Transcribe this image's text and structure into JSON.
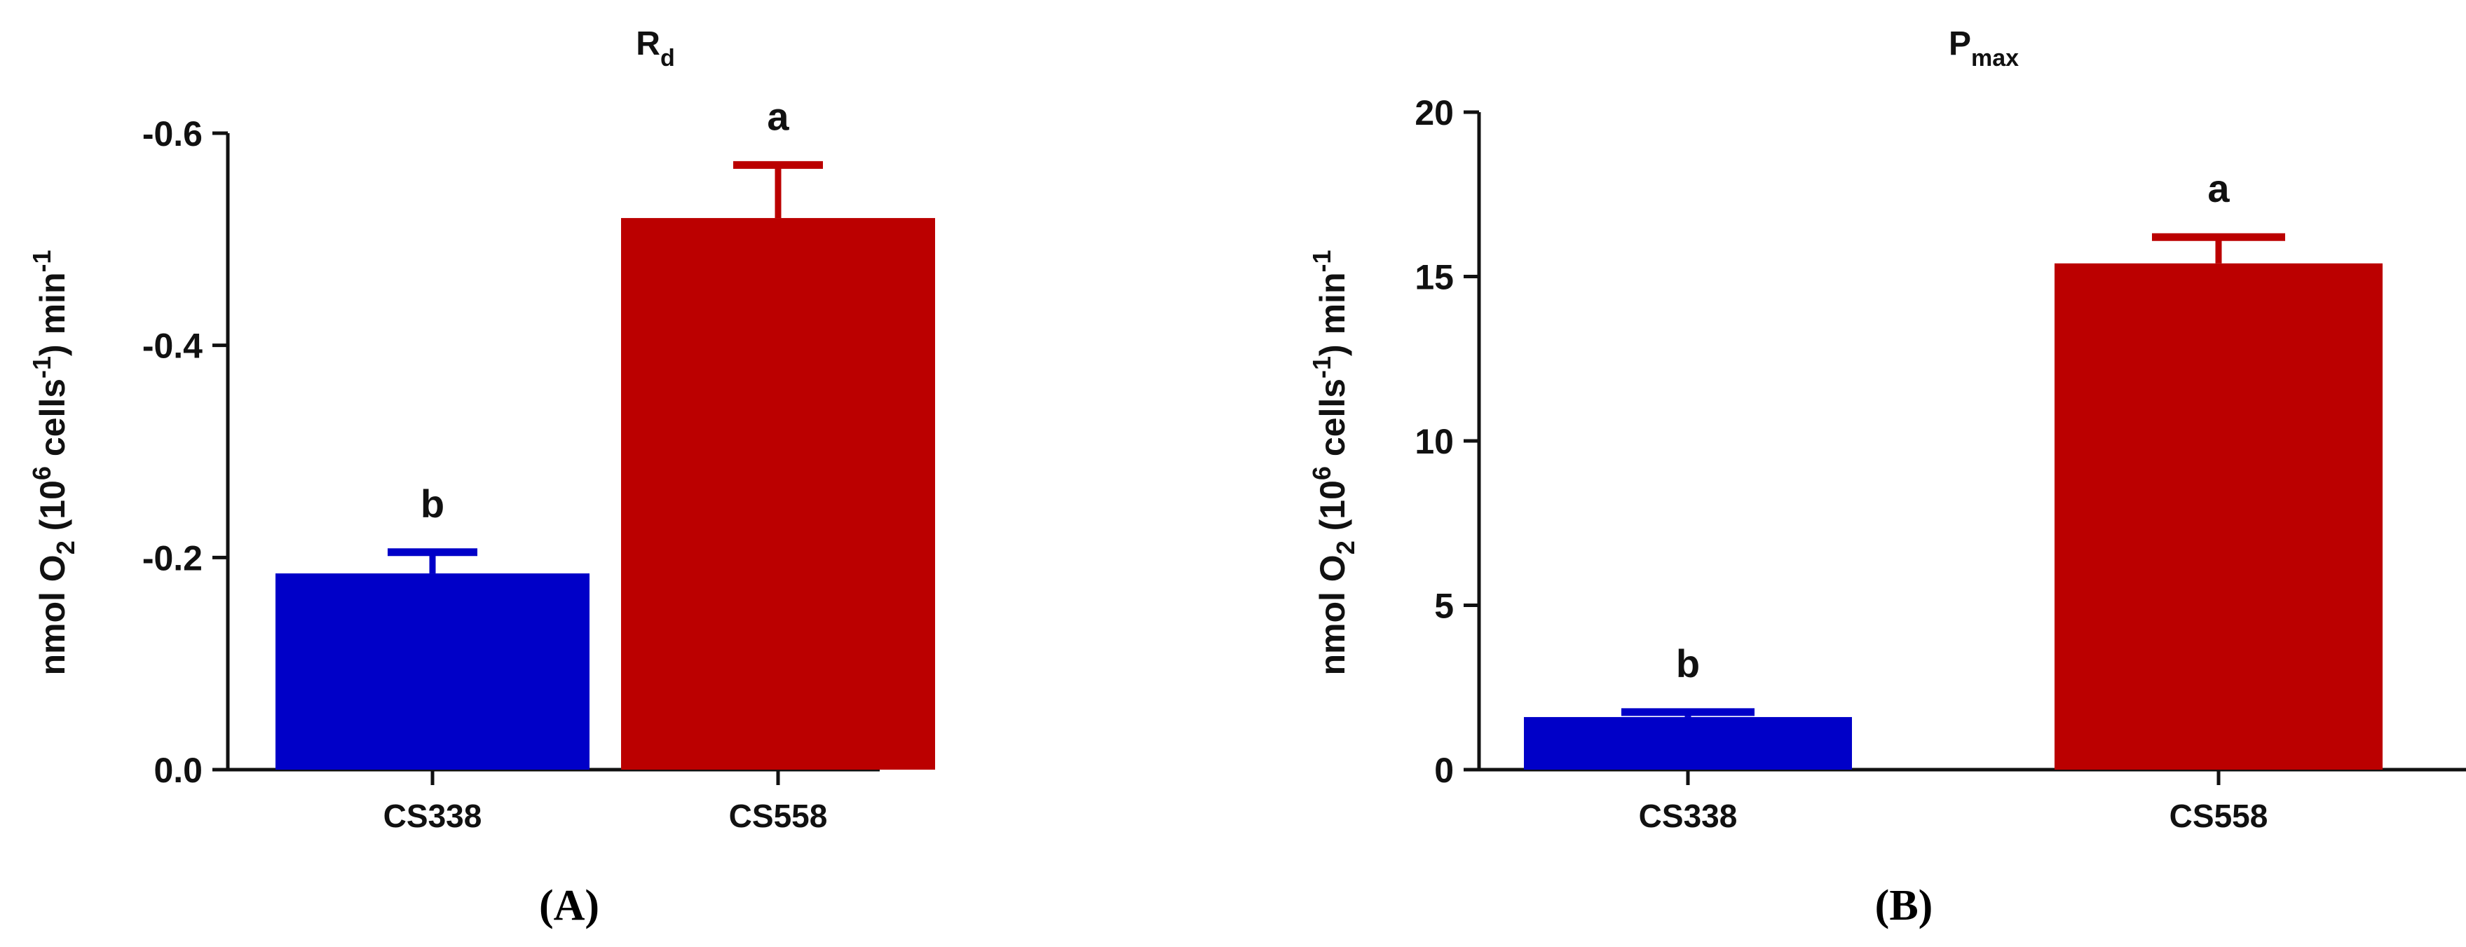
{
  "chart_data": [
    {
      "type": "bar",
      "panel_label": "(A)",
      "title": {
        "main": "R",
        "sub": "d"
      },
      "ylabel": {
        "p1": "nmol O",
        "s1": "2",
        "p2": " (10",
        "s2": "6",
        "p3": " cells",
        "s3": "-1",
        "p4": ") min",
        "s4": "-1"
      },
      "y_inverted": true,
      "ylim": [
        0,
        -0.6
      ],
      "yticks": [
        0.0,
        -0.2,
        -0.4,
        -0.6
      ],
      "ytick_labels": [
        "0.0",
        "-0.2",
        "-0.4",
        "-0.6"
      ],
      "categories": [
        "CS338",
        "CS558"
      ],
      "values": [
        -0.185,
        -0.52
      ],
      "errors": [
        0.02,
        0.05
      ],
      "letters": [
        "b",
        "a"
      ],
      "colors": [
        "#0000c8",
        "#bb0000"
      ]
    },
    {
      "type": "bar",
      "panel_label": "(B)",
      "title": {
        "main": "P",
        "sub": "max"
      },
      "ylabel": {
        "p1": "nmol O",
        "s1": "2",
        "p2": " (10",
        "s2": "6",
        "p3": " cells",
        "s3": "-1",
        "p4": ") min",
        "s4": "-1"
      },
      "y_inverted": false,
      "ylim": [
        0,
        20
      ],
      "yticks": [
        0,
        5,
        10,
        15,
        20
      ],
      "ytick_labels": [
        "0",
        "5",
        "10",
        "15",
        "20"
      ],
      "categories": [
        "CS338",
        "CS558"
      ],
      "values": [
        1.6,
        15.4
      ],
      "errors": [
        0.15,
        0.8
      ],
      "letters": [
        "b",
        "a"
      ],
      "colors": [
        "#0000c8",
        "#bb0000"
      ]
    }
  ]
}
